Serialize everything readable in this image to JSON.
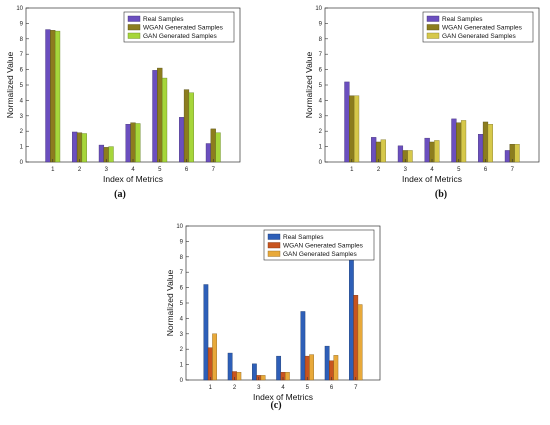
{
  "chart_data": [
    {
      "type": "bar",
      "caption": "(a)",
      "categories": [
        "1",
        "2",
        "3",
        "4",
        "5",
        "6",
        "7"
      ],
      "xlabel": "Index of Metrics",
      "ylabel": "Normalized Value",
      "ylim": [
        0,
        10
      ],
      "yticks": [
        "0",
        "1",
        "2",
        "3",
        "4",
        "5",
        "6",
        "7",
        "8",
        "9",
        "10"
      ],
      "legend_position": "top-right",
      "series": [
        {
          "name": "Real Samples",
          "color": "#6b4fbf",
          "values": [
            8.6,
            1.95,
            1.1,
            2.45,
            5.95,
            2.9,
            1.2
          ]
        },
        {
          "name": "WGAN Generated Samples",
          "color": "#8c7d1e",
          "values": [
            8.55,
            1.9,
            0.95,
            2.55,
            6.1,
            4.7,
            2.15
          ]
        },
        {
          "name": "GAN Generated Samples",
          "color": "#a6d63a",
          "values": [
            8.5,
            1.85,
            1.0,
            2.5,
            5.45,
            4.5,
            1.9
          ]
        }
      ]
    },
    {
      "type": "bar",
      "caption": "(b)",
      "categories": [
        "1",
        "2",
        "3",
        "4",
        "5",
        "6",
        "7"
      ],
      "xlabel": "Index of Metrics",
      "ylabel": "Normalized Value",
      "ylim": [
        0,
        10
      ],
      "yticks": [
        "0",
        "1",
        "2",
        "3",
        "4",
        "5",
        "6",
        "7",
        "8",
        "9",
        "10"
      ],
      "legend_position": "top-right",
      "series": [
        {
          "name": "Real Samples",
          "color": "#6b4fbf",
          "values": [
            5.2,
            1.6,
            1.05,
            1.55,
            2.8,
            1.8,
            0.75
          ]
        },
        {
          "name": "WGAN Generated Samples",
          "color": "#8c7d1e",
          "values": [
            4.3,
            1.3,
            0.75,
            1.3,
            2.55,
            2.6,
            1.15
          ]
        },
        {
          "name": "GAN Generated Samples",
          "color": "#d6c84a",
          "values": [
            4.3,
            1.45,
            0.75,
            1.4,
            2.7,
            2.45,
            1.15
          ]
        }
      ]
    },
    {
      "type": "bar",
      "caption": "(c)",
      "categories": [
        "1",
        "2",
        "3",
        "4",
        "5",
        "6",
        "7"
      ],
      "xlabel": "Index of Metrics",
      "ylabel": "Normalized Value",
      "ylim": [
        0,
        10
      ],
      "yticks": [
        "0",
        "1",
        "2",
        "3",
        "4",
        "5",
        "6",
        "7",
        "8",
        "9",
        "10"
      ],
      "legend_position": "top-right",
      "series": [
        {
          "name": "Real Samples",
          "color": "#2e5fb8",
          "values": [
            6.2,
            1.75,
            1.05,
            1.55,
            4.45,
            2.2,
            9.0
          ]
        },
        {
          "name": "WGAN Generated Samples",
          "color": "#c8541f",
          "values": [
            2.1,
            0.55,
            0.3,
            0.5,
            1.55,
            1.25,
            5.5
          ]
        },
        {
          "name": "GAN Generated Samples",
          "color": "#e8a93a",
          "values": [
            3.0,
            0.5,
            0.3,
            0.5,
            1.65,
            1.6,
            4.9
          ]
        }
      ]
    }
  ]
}
